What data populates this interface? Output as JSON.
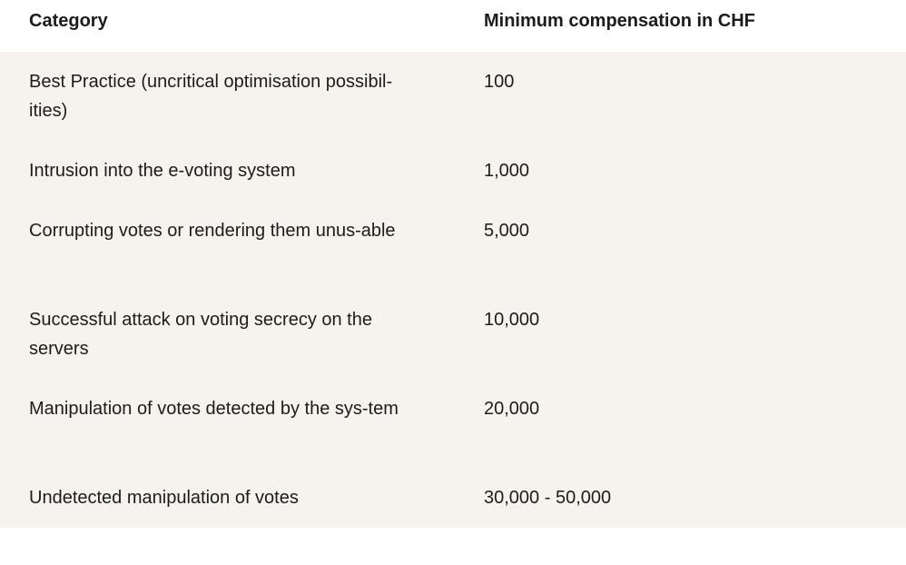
{
  "table": {
    "headers": {
      "category": "Category",
      "compensation": "Minimum compensation in CHF"
    },
    "rows": [
      {
        "category": "Best Practice (uncritical optimisation possibil-ities)",
        "compensation": "100"
      },
      {
        "category": "Intrusion into the e-voting system",
        "compensation": "1,000"
      },
      {
        "category": "Corrupting votes or rendering them unus-able",
        "compensation": "5,000"
      },
      {
        "category": "Successful attack on voting secrecy on the servers",
        "compensation": "10,000"
      },
      {
        "category": "Manipulation of votes detected by the sys-tem",
        "compensation": "20,000"
      },
      {
        "category": "Undetected manipulation of votes",
        "compensation": "30,000 - 50,000"
      }
    ]
  },
  "colors": {
    "row_background": "#f6f3ee",
    "header_background": "#ffffff",
    "text": "#1c1c1c"
  }
}
